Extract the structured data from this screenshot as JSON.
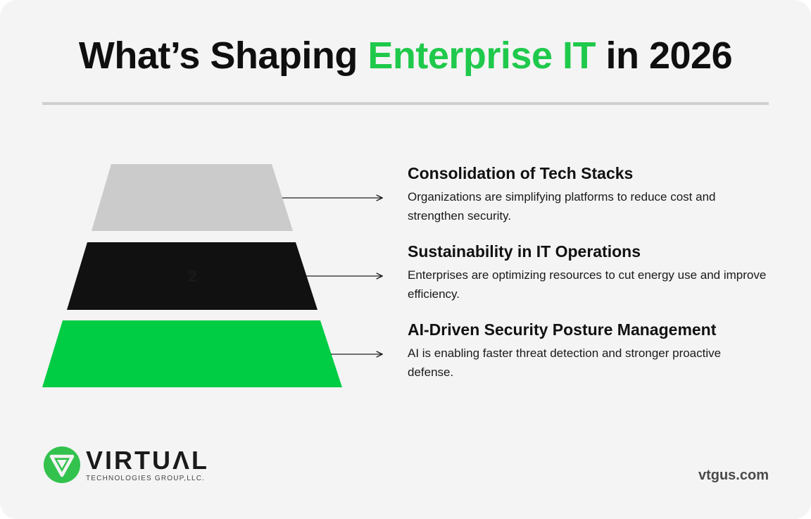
{
  "header": {
    "title_part1": "What’s Shaping ",
    "title_accent": "Enterprise IT",
    "title_part2": " in 2026"
  },
  "diagram": {
    "tiers": [
      {
        "label": "",
        "title": "Consolidation of Tech Stacks",
        "description": "Organizations are simplifying platforms to reduce cost and strengthen security.",
        "color": "#cbcbcb"
      },
      {
        "label": "2",
        "title": "Sustainability in IT Operations",
        "description": "Enterprises are optimizing resources to cut energy use and improve efficiency.",
        "color": "#111111"
      },
      {
        "label": "",
        "title": "AI-Driven Security Posture Management",
        "description": "AI is enabling faster threat detection and stronger proactive defense.",
        "color": "#00cc44"
      }
    ]
  },
  "footer": {
    "brand_name": "VIRTUΛL",
    "brand_subtitle": "TECHNOLOGIES GROUP,LLC.",
    "website": "vtgus.com"
  },
  "colors": {
    "accent": "#1fc94b",
    "logo_green": "#33c24d"
  }
}
